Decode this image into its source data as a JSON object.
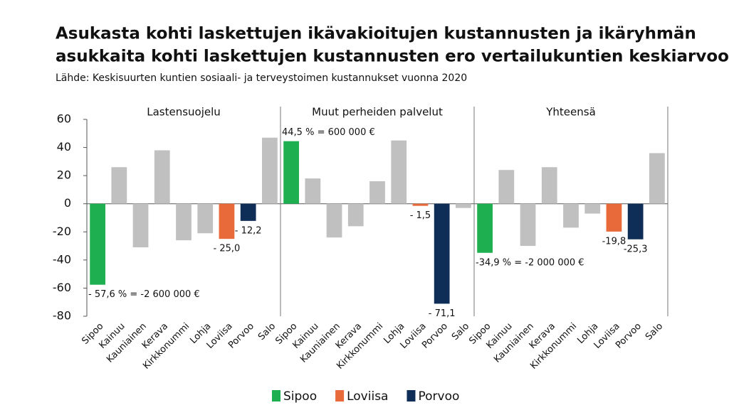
{
  "chart_data": {
    "type": "bar",
    "title": [
      "Asukasta kohti laskettujen ikävakioitujen kustannusten ja ikäryhmän",
      "asukkaita kohti laskettujen kustannusten ero vertailukuntien keskiarvoon, %"
    ],
    "subtitle": "Lähde: Keskisuurten kuntien sosiaali- ja terveystoimen kustannukset vuonna 2020",
    "categories": [
      "Sipoo",
      "Kainuu",
      "Kauniainen",
      "Kerava",
      "Kirkkonummi",
      "Lohja",
      "Loviisa",
      "Porvoo",
      "Salo"
    ],
    "color": "#c0c0c0",
    "panels": [
      {
        "title": "Lastensuojelu",
        "values": [
          -57.6,
          26,
          -31,
          38,
          -26,
          -21,
          -25.0,
          -12.2,
          47
        ],
        "value_labels": [
          "- 57,6 % = -2 600 000 €",
          null,
          null,
          null,
          null,
          null,
          "- 25,0",
          "- 12,2",
          null
        ]
      },
      {
        "title": "Muut perheiden palvelut",
        "values": [
          44.5,
          18,
          -24,
          -16,
          16,
          45,
          -1.5,
          -71.1,
          -3
        ],
        "value_labels": [
          "44,5 % = 600 000 €",
          null,
          null,
          null,
          null,
          null,
          "- 1,5",
          "- 71,1",
          null
        ]
      },
      {
        "title": "Yhteensä",
        "values": [
          -34.9,
          24,
          -30,
          26,
          -17,
          -7,
          -19.8,
          -25.3,
          36
        ],
        "value_labels": [
          "-34,9 % = -2 000 000 €",
          null,
          null,
          null,
          null,
          null,
          "-19,8",
          "-25,3",
          null
        ]
      }
    ],
    "ylim": [
      -80,
      60
    ],
    "yticks": [
      -80,
      -60,
      -40,
      -20,
      0,
      20,
      40,
      60
    ],
    "legend": [
      {
        "name": "Sipoo",
        "color": "#1eb050"
      },
      {
        "name": "Loviisa",
        "color": "#e8693a"
      },
      {
        "name": "Porvoo",
        "color": "#0f2e57"
      }
    ]
  }
}
